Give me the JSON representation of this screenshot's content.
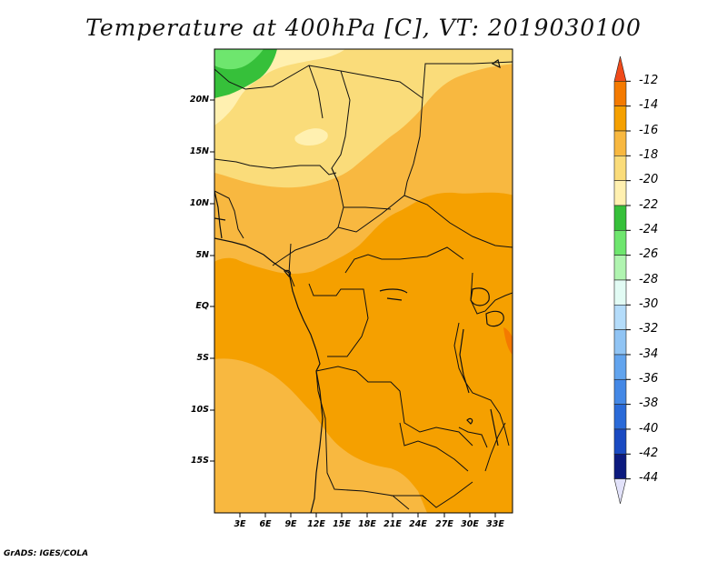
{
  "title": "Temperature at 400hPa [C], VT: 2019030100",
  "credit": "GrADS: IGES/COLA",
  "map": {
    "y_ticks": [
      "20N",
      "15N",
      "10N",
      "5N",
      "EQ",
      "5S",
      "10S",
      "15S"
    ],
    "x_ticks": [
      "3E",
      "6E",
      "9E",
      "12E",
      "15E",
      "18E",
      "21E",
      "24E",
      "27E",
      "30E",
      "33E"
    ]
  },
  "colorbar": {
    "labels": [
      "-12",
      "-14",
      "-16",
      "-18",
      "-20",
      "-22",
      "-24",
      "-26",
      "-28",
      "-30",
      "-32",
      "-34",
      "-36",
      "-38",
      "-40",
      "-42",
      "-44"
    ],
    "colors": [
      "#f04a1a",
      "#f47a00",
      "#f5a000",
      "#f8b840",
      "#fadc7a",
      "#fff0b0",
      "#36c03a",
      "#6ee66e",
      "#b0f4b0",
      "#e2fbf4",
      "#b4dcfa",
      "#90c4f4",
      "#62a4ee",
      "#4488e6",
      "#2a6ad8",
      "#1a4ac2",
      "#0c1a7e",
      "#e2e2fa"
    ]
  }
}
